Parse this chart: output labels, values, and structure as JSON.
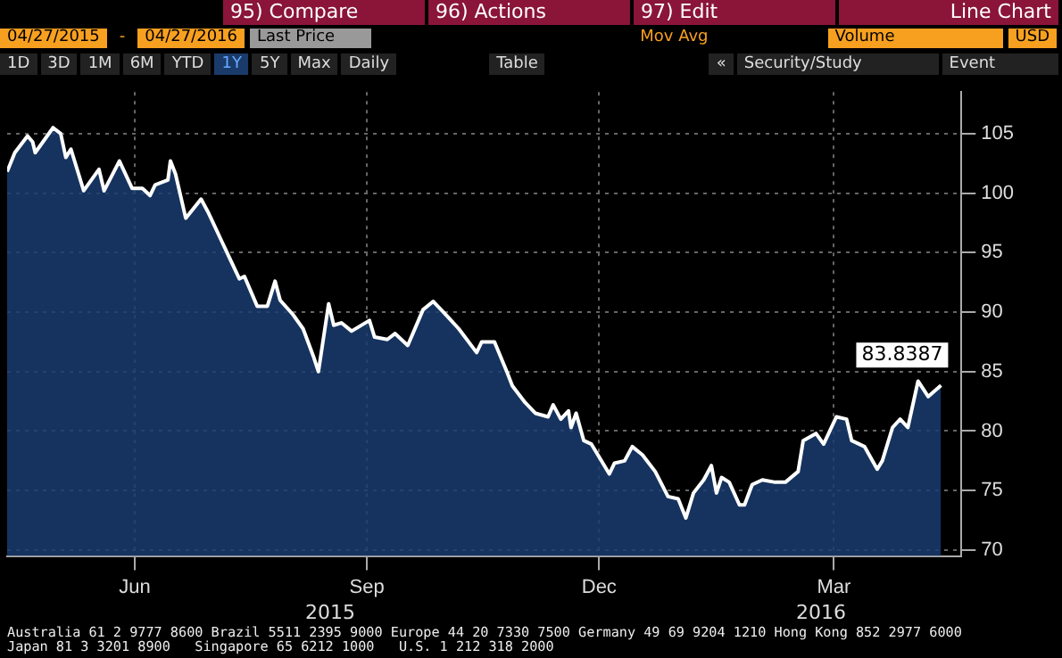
{
  "chart_data": {
    "type": "area",
    "x": [
      "2015-04-27",
      "2015-04-30",
      "2015-05-05",
      "2015-05-07",
      "2015-05-08",
      "2015-05-11",
      "2015-05-15",
      "2015-05-18",
      "2015-05-20",
      "2015-05-22",
      "2015-05-27",
      "2015-06-02",
      "2015-06-04",
      "2015-06-10",
      "2015-06-15",
      "2015-06-19",
      "2015-06-22",
      "2015-06-24",
      "2015-06-29",
      "2015-06-30",
      "2015-07-02",
      "2015-07-06",
      "2015-07-12",
      "2015-07-15",
      "2015-07-20",
      "2015-07-27",
      "2015-07-29",
      "2015-08-03",
      "2015-08-07",
      "2015-08-10",
      "2015-08-12",
      "2015-08-17",
      "2015-08-21",
      "2015-08-25",
      "2015-08-27",
      "2015-08-31",
      "2015-09-02",
      "2015-09-05",
      "2015-09-09",
      "2015-09-16",
      "2015-09-18",
      "2015-09-23",
      "2015-09-26",
      "2015-10-01",
      "2015-10-07",
      "2015-10-11",
      "2015-10-15",
      "2015-10-21",
      "2015-10-28",
      "2015-10-30",
      "2015-11-04",
      "2015-11-09",
      "2015-11-11",
      "2015-11-16",
      "2015-11-20",
      "2015-11-25",
      "2015-11-27",
      "2015-11-30",
      "2015-12-03",
      "2015-12-04",
      "2015-12-06",
      "2015-12-09",
      "2015-12-12",
      "2015-12-19",
      "2015-12-21",
      "2015-12-25",
      "2015-12-28",
      "2016-01-01",
      "2016-01-06",
      "2016-01-11",
      "2016-01-15",
      "2016-01-18",
      "2016-01-21",
      "2016-01-25",
      "2016-01-28",
      "2016-01-30",
      "2016-02-01",
      "2016-02-04",
      "2016-02-08",
      "2016-02-10",
      "2016-02-13",
      "2016-02-17",
      "2016-02-22",
      "2016-02-26",
      "2016-03-02",
      "2016-03-04",
      "2016-03-09",
      "2016-03-12",
      "2016-03-17",
      "2016-03-21",
      "2016-03-23",
      "2016-03-28",
      "2016-04-02",
      "2016-04-04",
      "2016-04-08",
      "2016-04-11",
      "2016-04-14",
      "2016-04-18",
      "2016-04-22",
      "2016-04-27"
    ],
    "series": [
      {
        "color": "#ffffff",
        "values": [
          101.8,
          103.4,
          104.8,
          104.3,
          103.4,
          104.3,
          105.5,
          105.0,
          103.0,
          103.7,
          100.2,
          102.0,
          100.2,
          102.7,
          100.4,
          100.4,
          99.8,
          100.7,
          101.1,
          102.7,
          101.6,
          97.9,
          99.5,
          98.3,
          96.0,
          92.8,
          93.0,
          90.5,
          90.5,
          92.6,
          91.0,
          89.8,
          88.6,
          86.3,
          85.0,
          90.7,
          88.9,
          89.1,
          88.4,
          89.3,
          87.9,
          87.7,
          88.2,
          87.2,
          90.2,
          90.9,
          90.0,
          88.6,
          86.6,
          87.5,
          87.5,
          84.9,
          83.8,
          82.4,
          81.5,
          81.2,
          82.2,
          81.0,
          81.7,
          80.3,
          81.5,
          79.2,
          78.9,
          76.4,
          77.3,
          77.5,
          78.7,
          78.0,
          76.6,
          74.5,
          74.3,
          72.7,
          74.8,
          75.9,
          77.1,
          74.8,
          76.1,
          75.7,
          73.8,
          73.8,
          75.5,
          75.9,
          75.7,
          75.7,
          76.6,
          79.2,
          79.8,
          78.9,
          81.2,
          81.0,
          79.2,
          78.7,
          76.8,
          77.5,
          80.3,
          81.0,
          80.3,
          84.2,
          82.9,
          83.8387
        ],
        "value_labels": [
          null,
          null,
          null,
          null,
          null,
          null,
          null,
          null,
          null,
          null,
          null,
          null,
          null,
          null,
          null,
          null,
          null,
          null,
          null,
          null,
          null,
          null,
          null,
          null,
          null,
          null,
          null,
          null,
          null,
          null,
          null,
          null,
          null,
          null,
          null,
          null,
          null,
          null,
          null,
          null,
          null,
          null,
          null,
          null,
          null,
          null,
          null,
          null,
          null,
          null,
          null,
          null,
          null,
          null,
          null,
          null,
          null,
          null,
          null,
          null,
          null,
          null,
          null,
          null,
          null,
          null,
          null,
          null,
          null,
          null,
          null,
          null,
          null,
          null,
          null,
          null,
          null,
          null,
          null,
          null,
          null,
          null,
          null,
          null,
          null,
          null,
          null,
          null,
          null,
          null,
          null,
          null,
          null,
          null,
          null,
          null,
          null,
          null,
          null,
          "83.8387"
        ]
      }
    ],
    "xlim": [
      "2015-04-27",
      "2016-05-05"
    ],
    "xticks": [
      {
        "value": "2015-06-16",
        "label": "Jun"
      },
      {
        "value": "2015-09-15",
        "label": "Sep"
      },
      {
        "value": "2015-12-15",
        "label": "Dec"
      },
      {
        "value": "2016-03-16",
        "label": "Mar"
      }
    ],
    "ylim": [
      69.5,
      108.5
    ],
    "yticks": [
      70,
      75,
      80,
      85,
      90,
      95,
      100,
      105
    ],
    "grid": true,
    "legend": false,
    "annotations": [
      "95) Compare",
      "96) Actions",
      "97) Edit",
      "Line Chart",
      "04/27/2015",
      "-",
      "04/27/2016",
      "Last Price",
      "Mov Avg",
      "Volume",
      "USD",
      "1D",
      "3D",
      "1M",
      "6M",
      "YTD",
      "1Y",
      "5Y",
      "Max",
      "Daily",
      "Table",
      "«",
      "Security/Study",
      "Event",
      "2015",
      "2016",
      "Australia 61 2 9777 8600 Brazil 5511 2395 9000 Europe 44 20 7330 7500 Germany 49 69 9204 1210 Hong Kong 852 2977 6000",
      "Japan 81 3 3201 8900   Singapore 65 6212 1000   U.S. 1 212 318 2000"
    ]
  }
}
